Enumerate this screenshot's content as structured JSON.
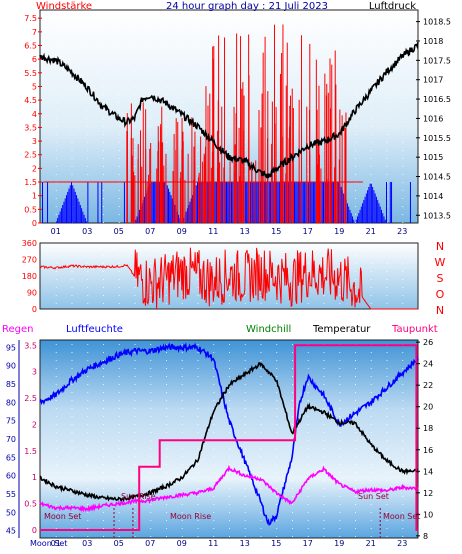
{
  "chart_data": [
    {
      "type": "line",
      "title": "24 hour graph day : 21 Juli 2023",
      "left_label": "Windstärke",
      "right_label": "Luftdruck",
      "x_ticks": [
        "01",
        "03",
        "05",
        "07",
        "09",
        "11",
        "13",
        "15",
        "17",
        "19",
        "21",
        "23"
      ],
      "y_left_ticks": [
        "0",
        "0.5",
        "1",
        "1.5",
        "2",
        "2.5",
        "3",
        "3.5",
        "4",
        "4.5",
        "5",
        "5.5",
        "6",
        "6.5",
        "7",
        "7.5"
      ],
      "y_right_ticks": [
        "1013.5",
        "1014",
        "1014.5",
        "1015",
        "1015.5",
        "1016",
        "1016.5",
        "1017",
        "1017.5",
        "1018",
        "1018.5"
      ],
      "ylim_left": [
        0,
        7.8
      ],
      "ylim_right": [
        1013.3,
        1018.8
      ],
      "pressure_color": "#000000",
      "gust_color": "#ff0000",
      "wind_color": "#0000ff",
      "series": [
        {
          "name": "Luftdruck",
          "x": [
            0,
            1,
            2,
            3,
            4,
            5,
            5.5,
            6,
            6.5,
            7,
            8,
            9,
            10,
            11,
            12,
            13,
            14,
            14.5,
            15,
            16,
            17,
            18,
            19,
            20,
            21,
            22,
            23,
            24
          ],
          "values": [
            1017.6,
            1017.5,
            1017.2,
            1016.8,
            1016.3,
            1016.0,
            1015.9,
            1016.0,
            1016.5,
            1016.6,
            1016.4,
            1016.1,
            1015.8,
            1015.4,
            1015.0,
            1014.9,
            1014.6,
            1014.5,
            1014.7,
            1015.0,
            1015.3,
            1015.4,
            1015.6,
            1016.2,
            1016.7,
            1017.2,
            1017.6,
            1017.9
          ]
        },
        {
          "name": "Windstärke",
          "x": [
            0,
            1,
            2,
            3,
            4,
            5,
            6,
            7,
            8,
            9,
            10,
            11,
            12,
            13,
            14,
            15,
            16,
            17,
            18,
            19,
            20,
            21,
            22,
            23,
            24
          ],
          "values": [
            0,
            0,
            1.5,
            0,
            0,
            0,
            0,
            1.5,
            1.5,
            0,
            1.5,
            1.5,
            1.5,
            1.5,
            1.5,
            1.5,
            1.5,
            1.5,
            1.5,
            1.5,
            0,
            1.5,
            0,
            0,
            0
          ]
        }
      ]
    },
    {
      "type": "line",
      "title": "",
      "right_labels": [
        "N",
        "W",
        "S",
        "O",
        "N"
      ],
      "y_ticks": [
        "0",
        "90",
        "180",
        "270",
        "360"
      ],
      "ylim": [
        0,
        360
      ],
      "series": [
        {
          "name": "",
          "x": [
            0,
            1,
            2,
            3,
            4,
            5,
            5.5,
            6,
            7,
            8,
            9,
            10,
            11,
            12,
            13,
            14,
            15,
            16,
            17,
            18,
            19,
            20,
            21,
            22,
            23,
            24
          ],
          "values": [
            230,
            225,
            235,
            230,
            230,
            232,
            240,
            180,
            140,
            160,
            200,
            180,
            150,
            190,
            170,
            200,
            180,
            160,
            200,
            190,
            170,
            120,
            0,
            0,
            0,
            0
          ]
        }
      ]
    },
    {
      "type": "line",
      "title": "",
      "legend": [
        "Regen",
        "Luftfeuchte",
        "Windchill",
        "Temperatur",
        "Taupunkt"
      ],
      "legend_colors": [
        "#ff00ff",
        "#0000ff",
        "#008000",
        "#000000",
        "#ff0080"
      ],
      "y_left_ticks": [
        "45",
        "50",
        "55",
        "60",
        "65",
        "70",
        "75",
        "80",
        "85",
        "90",
        "95"
      ],
      "y_rain_ticks": [
        "0",
        "0.5",
        "1",
        "1.5",
        "2",
        "2.5",
        "3",
        "3.5"
      ],
      "y_right_ticks": [
        "8",
        "10",
        "12",
        "14",
        "16",
        "18",
        "20",
        "22",
        "24",
        "26"
      ],
      "ylim_left": [
        43,
        97
      ],
      "ylim_right": [
        7.8,
        26.2
      ],
      "x_ticks": [
        "01",
        "03",
        "05",
        "07",
        "09",
        "11",
        "13",
        "15",
        "17",
        "19",
        "21",
        "23"
      ],
      "bottom_left_label": "Moon Set",
      "annotations": [
        "Moon Set",
        "Sun Rise",
        "Moon Rise",
        "Sun Set",
        "Moon Set"
      ],
      "series": [
        {
          "name": "Luftfeuchte",
          "x": [
            0,
            1,
            2,
            3,
            4,
            5,
            6,
            7,
            8,
            9,
            10,
            11,
            12,
            13,
            14,
            14.5,
            15,
            16,
            16.5,
            17,
            18,
            19,
            20,
            21,
            22,
            23,
            24
          ],
          "values": [
            80,
            82,
            86,
            89,
            91,
            93,
            94,
            94,
            95,
            95,
            95,
            92,
            75,
            64,
            53,
            47,
            49,
            65,
            80,
            87,
            82,
            74,
            77,
            80,
            84,
            88,
            92
          ]
        },
        {
          "name": "Temperatur",
          "x": [
            0,
            1,
            2,
            3,
            4,
            5,
            6,
            7,
            8,
            9,
            10,
            11,
            12,
            13,
            14,
            15,
            16,
            17,
            18,
            19,
            20,
            21,
            22,
            23,
            24
          ],
          "values": [
            13.4,
            12.6,
            12.2,
            11.8,
            11.5,
            11.4,
            11.6,
            12.0,
            12.6,
            13.4,
            15.0,
            19.5,
            22.0,
            23.0,
            24.0,
            22.5,
            17.5,
            20.0,
            19.5,
            18.5,
            18.5,
            16.5,
            15.0,
            14.0,
            14.0
          ]
        },
        {
          "name": "Taupunkt",
          "x": [
            0,
            1,
            2,
            3,
            4,
            5,
            6,
            7,
            8,
            9,
            10,
            11,
            12,
            13,
            14,
            15,
            16,
            17,
            18,
            19,
            20,
            21,
            22,
            23,
            24
          ],
          "values": [
            11.0,
            10.6,
            10.6,
            10.5,
            10.8,
            11.0,
            11.2,
            11.3,
            11.6,
            11.8,
            12.0,
            12.4,
            14.3,
            13.6,
            13.3,
            12.0,
            11.0,
            13.3,
            14.2,
            12.8,
            12.1,
            12.3,
            12.2,
            12.5,
            12.4
          ]
        },
        {
          "name": "Regen",
          "x": [
            0,
            6.3,
            6.3,
            7.6,
            7.6,
            16.2,
            16.2,
            23.9,
            23.9,
            24
          ],
          "values": [
            0,
            0,
            1.2,
            1.2,
            1.7,
            1.7,
            3.5,
            3.5,
            0,
            0
          ]
        }
      ]
    }
  ]
}
